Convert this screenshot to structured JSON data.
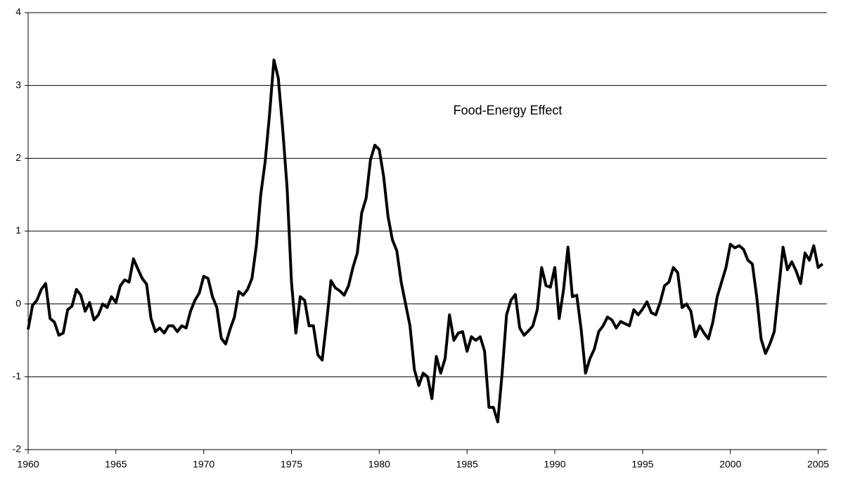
{
  "chart_data": {
    "type": "line",
    "annotation": "Food-Energy Effect",
    "x": [
      1960,
      1960.25,
      1960.5,
      1960.75,
      1961,
      1961.25,
      1961.5,
      1961.75,
      1962,
      1962.25,
      1962.5,
      1962.75,
      1963,
      1963.25,
      1963.5,
      1963.75,
      1964,
      1964.25,
      1964.5,
      1964.75,
      1965,
      1965.25,
      1965.5,
      1965.75,
      1966,
      1966.25,
      1966.5,
      1966.75,
      1967,
      1967.25,
      1967.5,
      1967.75,
      1968,
      1968.25,
      1968.5,
      1968.75,
      1969,
      1969.25,
      1969.5,
      1969.75,
      1970,
      1970.25,
      1970.5,
      1970.75,
      1971,
      1971.25,
      1971.5,
      1971.75,
      1972,
      1972.25,
      1972.5,
      1972.75,
      1973,
      1973.25,
      1973.5,
      1973.75,
      1974,
      1974.25,
      1974.5,
      1974.75,
      1975,
      1975.25,
      1975.5,
      1975.75,
      1976,
      1976.25,
      1976.5,
      1976.75,
      1977,
      1977.25,
      1977.5,
      1977.75,
      1978,
      1978.25,
      1978.5,
      1978.75,
      1979,
      1979.25,
      1979.5,
      1979.75,
      1980,
      1980.25,
      1980.5,
      1980.75,
      1981,
      1981.25,
      1981.5,
      1981.75,
      1982,
      1982.25,
      1982.5,
      1982.75,
      1983,
      1983.25,
      1983.5,
      1983.75,
      1984,
      1984.25,
      1984.5,
      1984.75,
      1985,
      1985.25,
      1985.5,
      1985.75,
      1986,
      1986.25,
      1986.5,
      1986.75,
      1987,
      1987.25,
      1987.5,
      1987.75,
      1988,
      1988.25,
      1988.5,
      1988.75,
      1989,
      1989.25,
      1989.5,
      1989.75,
      1990,
      1990.25,
      1990.5,
      1990.75,
      1991,
      1991.25,
      1991.5,
      1991.75,
      1992,
      1992.25,
      1992.5,
      1992.75,
      1993,
      1993.25,
      1993.5,
      1993.75,
      1994,
      1994.25,
      1994.5,
      1994.75,
      1995,
      1995.25,
      1995.5,
      1995.75,
      1996,
      1996.25,
      1996.5,
      1996.75,
      1997,
      1997.25,
      1997.5,
      1997.75,
      1998,
      1998.25,
      1998.5,
      1998.75,
      1999,
      1999.25,
      1999.5,
      1999.75,
      2000,
      2000.25,
      2000.5,
      2000.75,
      2001,
      2001.25,
      2001.5,
      2001.75,
      2002,
      2002.25,
      2002.5,
      2002.75,
      2003,
      2003.25,
      2003.5,
      2003.75,
      2004,
      2004.25,
      2004.5,
      2004.75,
      2005,
      2005.25
    ],
    "series": [
      {
        "color": "#000000",
        "values": [
          -0.35,
          -0.02,
          0.05,
          0.2,
          0.28,
          -0.2,
          -0.25,
          -0.43,
          -0.4,
          -0.08,
          -0.03,
          0.2,
          0.12,
          -0.1,
          0.02,
          -0.22,
          -0.15,
          0.0,
          -0.05,
          0.1,
          0.02,
          0.25,
          0.33,
          0.3,
          0.62,
          0.48,
          0.35,
          0.27,
          -0.2,
          -0.38,
          -0.33,
          -0.4,
          -0.3,
          -0.3,
          -0.38,
          -0.3,
          -0.33,
          -0.1,
          0.05,
          0.15,
          0.38,
          0.35,
          0.1,
          -0.05,
          -0.47,
          -0.55,
          -0.35,
          -0.18,
          0.17,
          0.12,
          0.2,
          0.35,
          0.8,
          1.5,
          1.95,
          2.6,
          3.35,
          3.1,
          2.4,
          1.6,
          0.3,
          -0.4,
          0.1,
          0.05,
          -0.3,
          -0.3,
          -0.7,
          -0.77,
          -0.25,
          0.32,
          0.22,
          0.18,
          0.12,
          0.25,
          0.5,
          0.7,
          1.25,
          1.45,
          1.98,
          2.18,
          2.12,
          1.75,
          1.2,
          0.88,
          0.73,
          0.3,
          0.0,
          -0.3,
          -0.9,
          -1.12,
          -0.95,
          -1.0,
          -1.3,
          -0.72,
          -0.95,
          -0.75,
          -0.15,
          -0.5,
          -0.4,
          -0.38,
          -0.65,
          -0.45,
          -0.5,
          -0.45,
          -0.65,
          -1.42,
          -1.42,
          -1.62,
          -0.95,
          -0.15,
          0.05,
          0.13,
          -0.33,
          -0.43,
          -0.37,
          -0.3,
          -0.08,
          0.5,
          0.25,
          0.23,
          0.5,
          -0.2,
          0.2,
          0.78,
          0.1,
          0.12,
          -0.35,
          -0.95,
          -0.75,
          -0.62,
          -0.38,
          -0.3,
          -0.18,
          -0.22,
          -0.33,
          -0.24,
          -0.27,
          -0.3,
          -0.08,
          -0.15,
          -0.07,
          0.03,
          -0.12,
          -0.15,
          0.02,
          0.25,
          0.3,
          0.5,
          0.43,
          -0.05,
          0.0,
          -0.1,
          -0.45,
          -0.3,
          -0.4,
          -0.48,
          -0.25,
          0.1,
          0.3,
          0.5,
          0.82,
          0.77,
          0.8,
          0.75,
          0.6,
          0.55,
          0.1,
          -0.48,
          -0.68,
          -0.55,
          -0.38,
          0.2,
          0.78,
          0.47,
          0.58,
          0.45,
          0.28,
          0.7,
          0.6,
          0.8,
          0.5,
          0.55
        ]
      }
    ],
    "xlim": [
      1960,
      2005.5
    ],
    "xticks": [
      1960,
      1965,
      1970,
      1975,
      1980,
      1985,
      1990,
      1995,
      2000,
      2005
    ],
    "ylim": [
      -2,
      4
    ],
    "yticks": [
      -2,
      -1,
      0,
      1,
      2,
      3,
      4
    ],
    "grid": true
  }
}
